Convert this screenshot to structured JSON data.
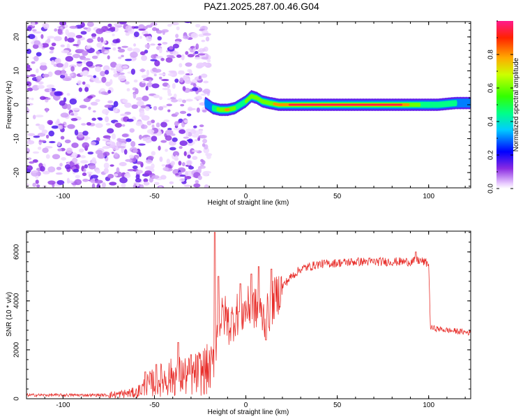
{
  "title": "PAZ1.2025.287.00.46.G04",
  "colors": {
    "snr_line": "#e8302c",
    "frame": "#000000",
    "background": "#ffffff",
    "noise_purple": "#7a1ee6"
  },
  "chart_data": [
    {
      "type": "heatmap",
      "name": "spectrogram",
      "xlabel": "Height of straight line (km)",
      "ylabel": "Frequency (Hz)",
      "xlim": [
        -120,
        123
      ],
      "ylim": [
        -24.5,
        24.5
      ],
      "xticks": [
        -100,
        -50,
        0,
        50,
        100
      ],
      "yticks": [
        -20,
        -10,
        0,
        10,
        20
      ],
      "colorbar": {
        "label": "Normalized spectral amplitude",
        "range": [
          0,
          1
        ],
        "ticks": [
          0.0,
          0.2,
          0.4,
          0.6,
          0.8
        ],
        "tick_labels": [
          "0.0",
          "0.2",
          "0.4",
          "0.6",
          "0.8"
        ]
      },
      "noise_region": {
        "x_range": [
          -120,
          -20
        ],
        "y_range": [
          -24.5,
          24.5
        ],
        "amplitude_range": [
          0.0,
          0.15
        ]
      },
      "signal_track": {
        "points": [
          {
            "x": -22,
            "y": 0.5
          },
          {
            "x": -18,
            "y": -1
          },
          {
            "x": -14,
            "y": -1.5
          },
          {
            "x": -10,
            "y": -1.5
          },
          {
            "x": -6,
            "y": -1
          },
          {
            "x": -3,
            "y": 0
          },
          {
            "x": 0,
            "y": 1
          },
          {
            "x": 3,
            "y": 2.5
          },
          {
            "x": 6,
            "y": 2
          },
          {
            "x": 9,
            "y": 1
          },
          {
            "x": 13,
            "y": 0.5
          },
          {
            "x": 18,
            "y": 0
          },
          {
            "x": 30,
            "y": 0
          },
          {
            "x": 60,
            "y": 0
          },
          {
            "x": 85,
            "y": 0
          },
          {
            "x": 95,
            "y": 0
          },
          {
            "x": 105,
            "y": 0
          },
          {
            "x": 115,
            "y": 0.5
          },
          {
            "x": 123,
            "y": 0.5
          }
        ],
        "peak_amplitude": [
          0.35,
          0.45,
          0.7,
          0.85,
          0.6,
          0.5,
          0.6,
          0.75,
          0.7,
          0.6,
          0.7,
          0.9,
          1.0,
          1.0,
          0.95,
          0.6,
          0.5,
          0.45,
          0.4
        ]
      }
    },
    {
      "type": "line",
      "name": "snr",
      "xlabel": "Height of straight line (km)",
      "ylabel": "SNR (10 * v/v)",
      "xlim": [
        -120,
        123
      ],
      "ylim": [
        0,
        6850
      ],
      "xticks": [
        -100,
        -50,
        0,
        50,
        100
      ],
      "yticks": [
        0,
        2000,
        4000,
        6000
      ],
      "series": [
        {
          "name": "SNR",
          "x": [
            -120,
            -100,
            -80,
            -75,
            -70,
            -60,
            -55,
            -50,
            -45,
            -40,
            -35,
            -30,
            -25,
            -20,
            -18,
            -16,
            -15,
            -13,
            -11,
            -9,
            -7,
            -5,
            -3,
            -1,
            1,
            3,
            5,
            7,
            9,
            11,
            13,
            15,
            20,
            25,
            30,
            35,
            40,
            50,
            60,
            70,
            80,
            90,
            95,
            99,
            100,
            101,
            110,
            123
          ],
          "y": [
            150,
            150,
            150,
            150,
            180,
            250,
            500,
            700,
            800,
            900,
            950,
            900,
            1100,
            1200,
            1400,
            2500,
            3200,
            3300,
            3400,
            3000,
            3200,
            3500,
            3400,
            3600,
            3700,
            3800,
            3700,
            3500,
            3400,
            3300,
            3600,
            4000,
            4600,
            5000,
            5300,
            5400,
            5500,
            5550,
            5600,
            5600,
            5600,
            5600,
            5650,
            5550,
            5500,
            2900,
            2800,
            2700
          ]
        }
      ],
      "spikes": [
        {
          "x": -55,
          "y": 1100
        },
        {
          "x": -49,
          "y": 1400
        },
        {
          "x": -37,
          "y": 2300
        },
        {
          "x": -30,
          "y": 1800
        },
        {
          "x": -17,
          "y": 6800
        },
        {
          "x": -15,
          "y": 5000
        },
        {
          "x": -3,
          "y": 4700
        },
        {
          "x": 3,
          "y": 5100
        },
        {
          "x": 7,
          "y": 5400
        },
        {
          "x": 11,
          "y": 2400
        },
        {
          "x": 14,
          "y": 5300
        },
        {
          "x": 93,
          "y": 6000
        }
      ]
    }
  ]
}
